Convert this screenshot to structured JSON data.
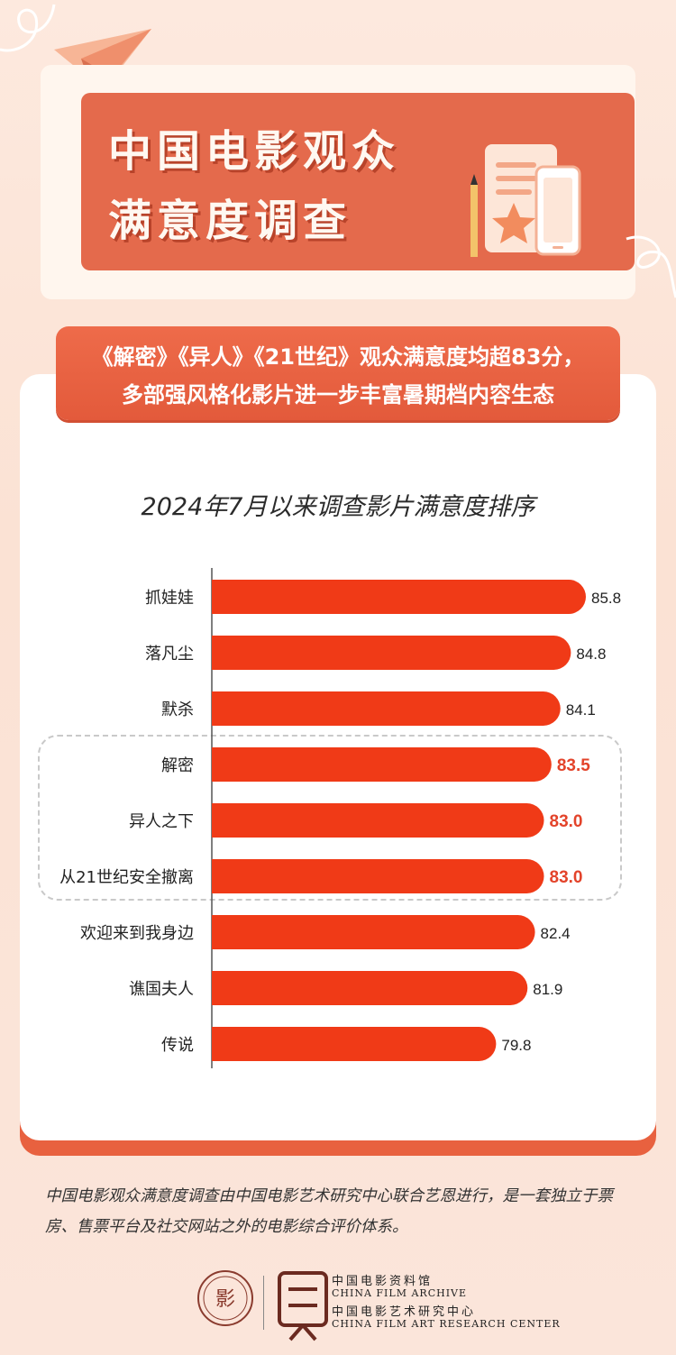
{
  "title": {
    "line1": "中国电影观众",
    "line2": "满意度调查"
  },
  "banner": {
    "line1": "《解密》《异人》《21世纪》观众满意度均超83分，",
    "line2": "多部强风格化影片进一步丰富暑期档内容生态"
  },
  "colors": {
    "bar": "#f03a17",
    "highlight_value": "#e3432a",
    "accent": "#e46a4c"
  },
  "chart_data": {
    "type": "bar",
    "orientation": "horizontal",
    "title": "2024年7月以来调查影片满意度排序",
    "categories": [
      "抓娃娃",
      "落凡尘",
      "默杀",
      "解密",
      "异人之下",
      "从21世纪安全撤离",
      "欢迎来到我身边",
      "谯国夫人",
      "传说"
    ],
    "values": [
      85.8,
      84.8,
      84.1,
      83.5,
      83.0,
      83.0,
      82.4,
      81.9,
      79.8
    ],
    "value_labels": [
      "85.8",
      "84.8",
      "84.1",
      "83.5",
      "83.0",
      "83.0",
      "82.4",
      "81.9",
      "79.8"
    ],
    "highlighted": [
      false,
      false,
      false,
      true,
      true,
      true,
      false,
      false,
      false
    ],
    "xlabel": "",
    "ylabel": "",
    "grid": false
  },
  "footer": {
    "text": "中国电影观众满意度调查由中国电影艺术研究中心联合艺恩进行，是一套独立于票房、售票平台及社交网站之外的电影综合评价体系。",
    "logo1_cn": "中国电影资料馆",
    "logo1_en": "CHINA FILM ARCHIVE",
    "logo2_cn": "中国电影艺术研究中心",
    "logo2_en": "CHINA FILM ART RESEARCH CENTER"
  }
}
